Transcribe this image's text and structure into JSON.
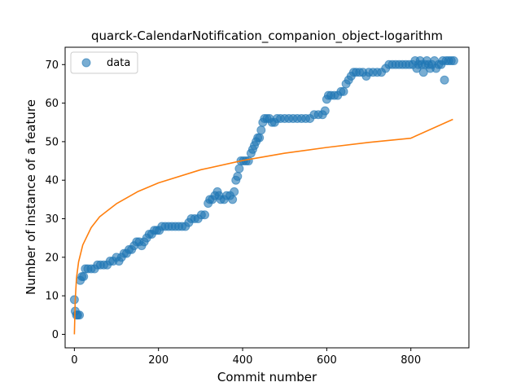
{
  "chart_data": {
    "type": "scatter",
    "title": "quarck-CalendarNotification_companion_object-logarithm",
    "xlabel": "Commit number",
    "ylabel": "Number of instance of a feature",
    "xlim": [
      -22,
      938
    ],
    "ylim": [
      -3.5,
      74.5
    ],
    "xticks": [
      0,
      200,
      400,
      600,
      800
    ],
    "yticks": [
      0,
      10,
      20,
      30,
      40,
      50,
      60,
      70
    ],
    "grid": false,
    "legend": {
      "position": "top-left",
      "entries": [
        "data"
      ]
    },
    "colors": {
      "data": "#1f77b4",
      "fit": "#ff7f0e"
    },
    "series": [
      {
        "name": "data",
        "kind": "scatter",
        "points": [
          [
            0,
            9
          ],
          [
            2,
            6
          ],
          [
            5,
            5
          ],
          [
            8,
            5
          ],
          [
            12,
            5
          ],
          [
            14,
            14
          ],
          [
            18,
            15
          ],
          [
            22,
            15
          ],
          [
            26,
            17
          ],
          [
            32,
            17
          ],
          [
            40,
            17
          ],
          [
            48,
            17
          ],
          [
            55,
            18
          ],
          [
            62,
            18
          ],
          [
            70,
            18
          ],
          [
            78,
            18
          ],
          [
            85,
            19
          ],
          [
            92,
            19
          ],
          [
            100,
            20
          ],
          [
            106,
            19
          ],
          [
            112,
            20
          ],
          [
            118,
            21
          ],
          [
            124,
            21
          ],
          [
            130,
            22
          ],
          [
            136,
            22
          ],
          [
            142,
            23
          ],
          [
            148,
            24
          ],
          [
            154,
            24
          ],
          [
            160,
            23
          ],
          [
            166,
            24
          ],
          [
            172,
            25
          ],
          [
            178,
            26
          ],
          [
            184,
            26
          ],
          [
            190,
            27
          ],
          [
            196,
            27
          ],
          [
            202,
            27
          ],
          [
            208,
            28
          ],
          [
            216,
            28
          ],
          [
            224,
            28
          ],
          [
            232,
            28
          ],
          [
            240,
            28
          ],
          [
            248,
            28
          ],
          [
            256,
            28
          ],
          [
            264,
            28
          ],
          [
            272,
            29
          ],
          [
            278,
            30
          ],
          [
            286,
            30
          ],
          [
            294,
            30
          ],
          [
            302,
            31
          ],
          [
            310,
            31
          ],
          [
            318,
            34
          ],
          [
            322,
            35
          ],
          [
            328,
            35
          ],
          [
            334,
            36
          ],
          [
            340,
            37
          ],
          [
            344,
            36
          ],
          [
            348,
            35
          ],
          [
            356,
            35
          ],
          [
            362,
            36
          ],
          [
            370,
            36
          ],
          [
            376,
            35
          ],
          [
            380,
            37
          ],
          [
            384,
            40
          ],
          [
            388,
            41
          ],
          [
            392,
            43
          ],
          [
            396,
            45
          ],
          [
            402,
            45
          ],
          [
            408,
            45
          ],
          [
            414,
            45
          ],
          [
            420,
            47
          ],
          [
            424,
            48
          ],
          [
            428,
            49
          ],
          [
            432,
            50
          ],
          [
            436,
            51
          ],
          [
            440,
            51
          ],
          [
            444,
            53
          ],
          [
            448,
            55
          ],
          [
            452,
            56
          ],
          [
            458,
            56
          ],
          [
            464,
            56
          ],
          [
            470,
            55
          ],
          [
            476,
            55
          ],
          [
            482,
            56
          ],
          [
            490,
            56
          ],
          [
            500,
            56
          ],
          [
            510,
            56
          ],
          [
            520,
            56
          ],
          [
            530,
            56
          ],
          [
            540,
            56
          ],
          [
            550,
            56
          ],
          [
            560,
            56
          ],
          [
            570,
            57
          ],
          [
            580,
            57
          ],
          [
            590,
            57
          ],
          [
            596,
            58
          ],
          [
            600,
            61
          ],
          [
            604,
            62
          ],
          [
            610,
            62
          ],
          [
            618,
            62
          ],
          [
            626,
            62
          ],
          [
            634,
            63
          ],
          [
            640,
            63
          ],
          [
            646,
            65
          ],
          [
            652,
            66
          ],
          [
            658,
            67
          ],
          [
            664,
            68
          ],
          [
            670,
            68
          ],
          [
            678,
            68
          ],
          [
            686,
            68
          ],
          [
            694,
            67
          ],
          [
            700,
            68
          ],
          [
            710,
            68
          ],
          [
            720,
            68
          ],
          [
            730,
            68
          ],
          [
            740,
            69
          ],
          [
            748,
            70
          ],
          [
            756,
            70
          ],
          [
            764,
            70
          ],
          [
            772,
            70
          ],
          [
            780,
            70
          ],
          [
            788,
            70
          ],
          [
            796,
            70
          ],
          [
            804,
            70
          ],
          [
            810,
            71
          ],
          [
            814,
            69
          ],
          [
            818,
            70
          ],
          [
            822,
            71
          ],
          [
            826,
            70
          ],
          [
            830,
            68
          ],
          [
            834,
            70
          ],
          [
            838,
            71
          ],
          [
            842,
            70
          ],
          [
            846,
            69
          ],
          [
            850,
            70
          ],
          [
            856,
            71
          ],
          [
            860,
            69
          ],
          [
            866,
            70
          ],
          [
            872,
            70
          ],
          [
            876,
            71
          ],
          [
            880,
            66
          ],
          [
            884,
            71
          ],
          [
            890,
            71
          ],
          [
            896,
            71
          ],
          [
            902,
            71
          ]
        ]
      },
      {
        "kind": "line",
        "model": "logarithmic",
        "x": [
          0,
          2,
          5,
          10,
          20,
          40,
          60,
          100,
          150,
          200,
          300,
          400,
          500,
          600,
          700,
          800,
          900
        ],
        "y": [
          0,
          8.8,
          14.6,
          18.8,
          23.2,
          27.7,
          30.5,
          33.9,
          37.0,
          39.3,
          42.7,
          45.1,
          47.0,
          48.5,
          49.8,
          50.9,
          55.8
        ]
      }
    ]
  }
}
